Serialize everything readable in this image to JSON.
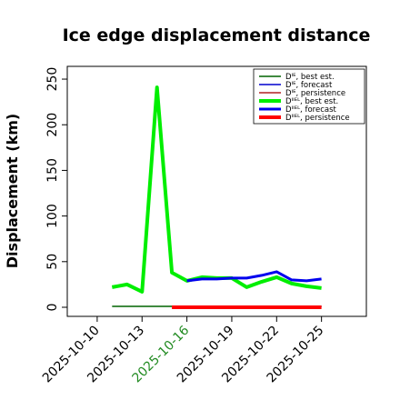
{
  "chart_data": {
    "type": "line",
    "title": "Ice edge displacement distance",
    "ylabel": "Displacement (km)",
    "xlabel": "",
    "ylim": [
      0,
      260
    ],
    "xlim": [
      "2025-10-08",
      "2025-10-28"
    ],
    "yticks": [
      0,
      50,
      100,
      150,
      200,
      250
    ],
    "xticks": [
      {
        "label": "2025-10-10",
        "x": "2025-10-10",
        "color": "#000000"
      },
      {
        "label": "2025-10-13",
        "x": "2025-10-13",
        "color": "#000000"
      },
      {
        "label": "2025-10-16",
        "x": "2025-10-16",
        "color": "#228b22"
      },
      {
        "label": "2025-10-19",
        "x": "2025-10-19",
        "color": "#000000"
      },
      {
        "label": "2025-10-22",
        "x": "2025-10-22",
        "color": "#000000"
      },
      {
        "label": "2025-10-25",
        "x": "2025-10-25",
        "color": "#000000"
      }
    ],
    "legend_position": "top-right",
    "grid": false,
    "series": [
      {
        "name": "Dᴵᴱ, best est.",
        "color": "#006400",
        "width": 1.5,
        "x": [
          "2025-10-11",
          "2025-10-12",
          "2025-10-13",
          "2025-10-14",
          "2025-10-15",
          "2025-10-16",
          "2025-10-17",
          "2025-10-18",
          "2025-10-19",
          "2025-10-20",
          "2025-10-21",
          "2025-10-22",
          "2025-10-23",
          "2025-10-24",
          "2025-10-25"
        ],
        "y": [
          1,
          1,
          1,
          1,
          1,
          1,
          1,
          1,
          1,
          1,
          1,
          1,
          1,
          1,
          1
        ]
      },
      {
        "name": "Dᴵᴱ, forecast",
        "color": "#0000cd",
        "width": 1.5,
        "x": [
          "2025-10-16",
          "2025-10-17",
          "2025-10-18",
          "2025-10-19",
          "2025-10-20",
          "2025-10-21",
          "2025-10-22",
          "2025-10-23",
          "2025-10-24",
          "2025-10-25"
        ],
        "y": [
          1,
          1,
          1,
          1,
          1,
          1,
          1,
          1,
          1,
          1
        ]
      },
      {
        "name": "Dᴵᴱ, persistence",
        "color": "#b22222",
        "width": 1.5,
        "x": [
          "2025-10-15",
          "2025-10-16",
          "2025-10-17",
          "2025-10-18",
          "2025-10-19",
          "2025-10-20",
          "2025-10-21",
          "2025-10-22",
          "2025-10-23",
          "2025-10-24",
          "2025-10-25"
        ],
        "y": [
          1,
          1,
          1,
          1,
          1,
          1,
          1,
          1,
          1,
          1,
          1
        ]
      },
      {
        "name": "Dᴵᴵᴱᴸ, best est.",
        "color": "#00ee00",
        "width": 4,
        "x": [
          "2025-10-11",
          "2025-10-12",
          "2025-10-13",
          "2025-10-14",
          "2025-10-15",
          "2025-10-16",
          "2025-10-17",
          "2025-10-18",
          "2025-10-19",
          "2025-10-20",
          "2025-10-21",
          "2025-10-22",
          "2025-10-23",
          "2025-10-24",
          "2025-10-25"
        ],
        "y": [
          22,
          25,
          17,
          241,
          38,
          29,
          33,
          32,
          32,
          22,
          28,
          33,
          26,
          23,
          21
        ]
      },
      {
        "name": "Dᴵᴵᴱᴸ, forecast",
        "color": "#0000ee",
        "width": 3,
        "x": [
          "2025-10-16",
          "2025-10-17",
          "2025-10-18",
          "2025-10-19",
          "2025-10-20",
          "2025-10-21",
          "2025-10-22",
          "2025-10-23",
          "2025-10-24",
          "2025-10-25"
        ],
        "y": [
          29,
          31,
          31,
          32,
          32,
          35,
          39,
          30,
          29,
          31
        ]
      },
      {
        "name": "Dᴵᴵᴱᴸ, persistence",
        "color": "#ff0000",
        "width": 4,
        "x": [
          "2025-10-15",
          "2025-10-16",
          "2025-10-17",
          "2025-10-18",
          "2025-10-19",
          "2025-10-20",
          "2025-10-21",
          "2025-10-22",
          "2025-10-23",
          "2025-10-24",
          "2025-10-25"
        ],
        "y": [
          0,
          0,
          0,
          0,
          0,
          0,
          0,
          0,
          0,
          0,
          0
        ]
      }
    ]
  }
}
